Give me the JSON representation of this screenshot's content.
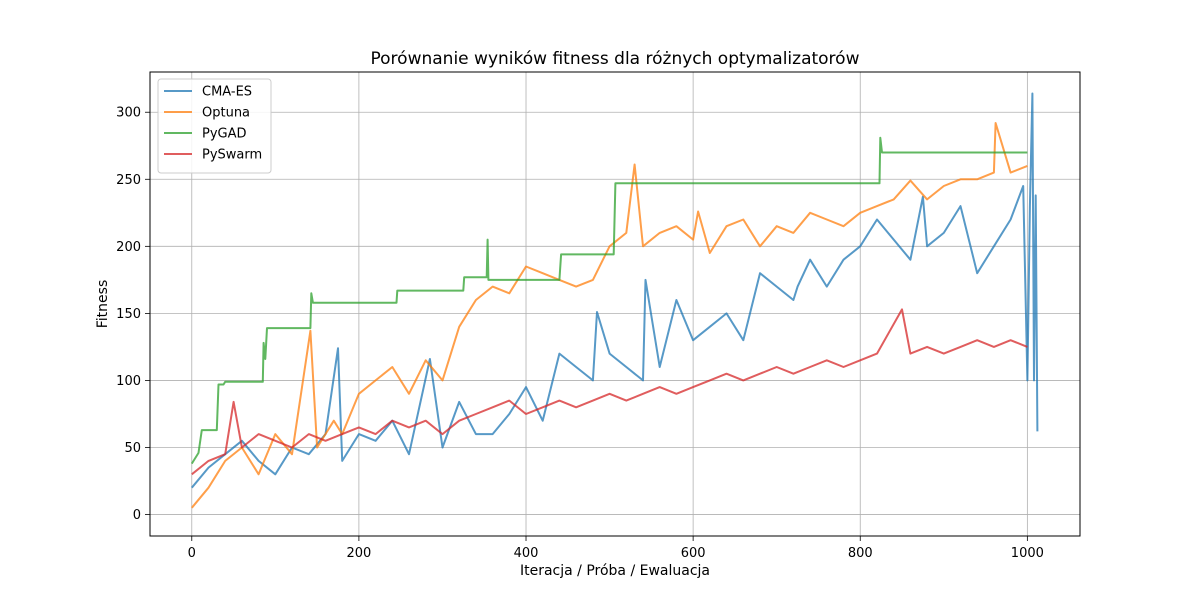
{
  "chart_data": {
    "type": "line",
    "title": "Porównanie wyników fitness dla różnych optymalizatorów",
    "xlabel": "Iteracja / Próba / Ewaluacja",
    "ylabel": "Fitness",
    "xlim": [
      -50,
      1063
    ],
    "ylim": [
      -16,
      330
    ],
    "xticks": [
      0,
      200,
      400,
      600,
      800,
      1000
    ],
    "yticks": [
      0,
      50,
      100,
      150,
      200,
      250,
      300
    ],
    "grid": true,
    "legend_position": "top-left",
    "series": [
      {
        "name": "CMA-ES",
        "color": "#1f77b4",
        "x": [
          0,
          20,
          40,
          60,
          80,
          100,
          120,
          140,
          160,
          175,
          180,
          200,
          220,
          240,
          260,
          285,
          300,
          320,
          340,
          360,
          380,
          400,
          420,
          440,
          460,
          480,
          485,
          500,
          520,
          540,
          543,
          560,
          580,
          600,
          620,
          640,
          660,
          680,
          700,
          720,
          725,
          740,
          760,
          780,
          800,
          820,
          840,
          860,
          875,
          880,
          900,
          920,
          940,
          960,
          980,
          995,
          1000,
          1003,
          1006,
          1008,
          1010,
          1012
        ],
        "y": [
          20,
          35,
          45,
          55,
          40,
          30,
          50,
          45,
          60,
          124,
          40,
          60,
          55,
          70,
          45,
          116,
          50,
          84,
          60,
          60,
          75,
          95,
          70,
          120,
          110,
          100,
          151,
          120,
          110,
          100,
          175,
          110,
          160,
          130,
          140,
          150,
          130,
          180,
          170,
          160,
          170,
          190,
          170,
          190,
          200,
          220,
          205,
          190,
          237,
          200,
          210,
          230,
          180,
          200,
          220,
          245,
          100,
          230,
          314,
          100,
          238,
          62
        ]
      },
      {
        "name": "Optuna",
        "color": "#ff7f0e",
        "x": [
          0,
          20,
          40,
          60,
          80,
          100,
          120,
          142,
          150,
          170,
          180,
          200,
          220,
          240,
          260,
          280,
          300,
          320,
          340,
          360,
          380,
          400,
          420,
          440,
          460,
          480,
          500,
          520,
          530,
          540,
          560,
          580,
          600,
          606,
          620,
          640,
          660,
          680,
          700,
          720,
          740,
          760,
          780,
          800,
          820,
          840,
          860,
          880,
          900,
          920,
          940,
          960,
          962,
          980,
          1000
        ],
        "y": [
          5,
          20,
          40,
          50,
          30,
          60,
          45,
          137,
          50,
          70,
          60,
          90,
          100,
          110,
          90,
          115,
          100,
          140,
          160,
          170,
          165,
          185,
          180,
          175,
          170,
          175,
          200,
          210,
          261,
          200,
          210,
          215,
          205,
          226,
          195,
          215,
          220,
          200,
          215,
          210,
          225,
          220,
          215,
          225,
          230,
          235,
          249,
          235,
          245,
          250,
          250,
          255,
          292,
          255,
          260
        ]
      },
      {
        "name": "PyGAD",
        "color": "#2ca02c",
        "x": [
          0,
          8,
          12,
          30,
          32,
          38,
          40,
          85,
          86,
          88,
          90,
          142,
          143,
          145,
          245,
          246,
          325,
          326,
          353,
          354,
          355,
          440,
          442,
          505,
          507,
          823,
          824,
          826,
          1000
        ],
        "y": [
          38,
          46,
          63,
          63,
          97,
          97,
          99,
          99,
          128,
          116,
          139,
          139,
          165,
          158,
          158,
          167,
          167,
          177,
          177,
          205,
          175,
          175,
          194,
          194,
          247,
          247,
          281,
          270,
          270
        ]
      },
      {
        "name": "PySwarm",
        "color": "#d62728",
        "x": [
          0,
          20,
          40,
          50,
          60,
          80,
          100,
          120,
          140,
          160,
          180,
          200,
          220,
          240,
          260,
          280,
          300,
          320,
          340,
          360,
          380,
          400,
          420,
          440,
          460,
          480,
          500,
          520,
          540,
          560,
          580,
          600,
          620,
          640,
          660,
          680,
          700,
          720,
          740,
          760,
          780,
          800,
          820,
          850,
          860,
          880,
          900,
          920,
          940,
          960,
          980,
          1000
        ],
        "y": [
          30,
          40,
          45,
          84,
          50,
          60,
          55,
          50,
          60,
          55,
          60,
          65,
          60,
          70,
          65,
          70,
          60,
          70,
          75,
          80,
          85,
          75,
          80,
          85,
          80,
          85,
          90,
          85,
          90,
          95,
          90,
          95,
          100,
          105,
          100,
          105,
          110,
          105,
          110,
          115,
          110,
          115,
          120,
          153,
          120,
          125,
          120,
          125,
          130,
          125,
          130,
          125
        ]
      }
    ]
  }
}
